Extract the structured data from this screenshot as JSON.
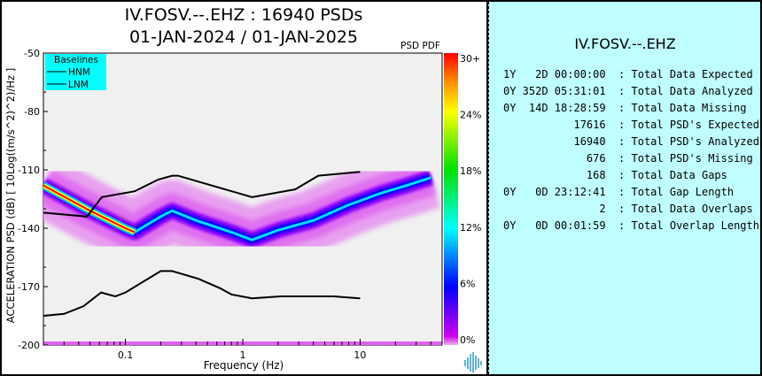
{
  "title_line1": "IV.FOSV.--.EHZ : 16940 PSDs",
  "title_line2": "01-JAN-2024 / 01-JAN-2025",
  "colorbar_title": "PSD PDF",
  "colors": {
    "plot_bg": "#f0f0f0",
    "legend_bg": "#00ffff",
    "stats_bg": "#bfffff",
    "baseline": "#000000"
  },
  "stats_panel": {
    "station": "IV.FOSV.--.EHZ",
    "rows": [
      {
        "value": "1Y   2D 00:00:00",
        "label": "Total Data Expected"
      },
      {
        "value": "0Y 352D 05:31:01",
        "label": "Total Data Analyzed"
      },
      {
        "value": "0Y  14D 18:28:59",
        "label": "Total Data Missing"
      },
      {
        "value": "17616",
        "label": "Total PSD's Expected"
      },
      {
        "value": "16940",
        "label": "Total PSD's Analyzed"
      },
      {
        "value": "676",
        "label": "Total PSD's Missing"
      },
      {
        "value": "168",
        "label": "Total Data Gaps"
      },
      {
        "value": "0Y   0D 23:12:41",
        "label": "Total Gap Length"
      },
      {
        "value": "2",
        "label": "Total Data Overlaps"
      },
      {
        "value": "0Y   0D 00:01:59",
        "label": "Total Overlap Length"
      }
    ]
  },
  "logo_icon": "waveform-logo-icon",
  "chart_data": {
    "type": "heatmap",
    "title": "IV.FOSV.--.EHZ : 16940 PSDs",
    "subtitle": "01-JAN-2024 / 01-JAN-2025",
    "xlabel": "Frequency (Hz)",
    "ylabel": "ACCELERATION PSD (dB) [ 10Log((m/s^2)^2)/Hz ]",
    "xscale": "log",
    "xlim": [
      0.02,
      50
    ],
    "ylim": [
      -200,
      -50
    ],
    "xticks": [
      {
        "value": 0.1,
        "label": "0.1"
      },
      {
        "value": 1,
        "label": "1"
      },
      {
        "value": 10,
        "label": "10"
      }
    ],
    "yticks": [
      {
        "value": -50,
        "label": "-50"
      },
      {
        "value": -80,
        "label": "-80"
      },
      {
        "value": -110,
        "label": "-110"
      },
      {
        "value": -140,
        "label": "-140"
      },
      {
        "value": -170,
        "label": "-170"
      },
      {
        "value": -200,
        "label": "-200"
      }
    ],
    "legend": {
      "title": "Baselines",
      "position": "top-left",
      "entries": [
        "HNM",
        "LNM"
      ]
    },
    "colorbar": {
      "label": "PSD PDF",
      "ticks": [
        "30+",
        "24%",
        "18%",
        "12%",
        "6%",
        "0%"
      ],
      "range_percent": [
        0,
        30
      ]
    },
    "series": [
      {
        "name": "HNM",
        "freq": [
          0.02,
          0.047,
          0.063,
          0.12,
          0.19,
          0.25,
          0.28,
          1.2,
          2.8,
          4.4,
          10
        ],
        "db": [
          -132,
          -134,
          -124,
          -121,
          -115,
          -113,
          -113,
          -124,
          -120,
          -113,
          -111
        ]
      },
      {
        "name": "LNM",
        "freq": [
          0.02,
          0.03,
          0.044,
          0.062,
          0.082,
          0.1,
          0.2,
          0.25,
          0.42,
          0.65,
          0.8,
          1.2,
          2.1,
          5.9,
          10
        ],
        "db": [
          -185,
          -184,
          -180,
          -173,
          -175,
          -173,
          -162,
          -162,
          -166,
          -171,
          -174,
          -176,
          -175,
          -175,
          -176
        ]
      },
      {
        "name": "PDF mode (high probability band)",
        "freq": [
          0.02,
          0.05,
          0.1,
          0.12,
          0.2,
          0.25,
          0.4,
          0.8,
          1.2,
          2,
          4,
          8,
          15,
          25,
          40
        ],
        "db": [
          -118,
          -131,
          -140,
          -142,
          -134,
          -131,
          -136,
          -142,
          -146,
          -141,
          -136,
          -128,
          -122,
          -118,
          -114
        ]
      }
    ]
  }
}
